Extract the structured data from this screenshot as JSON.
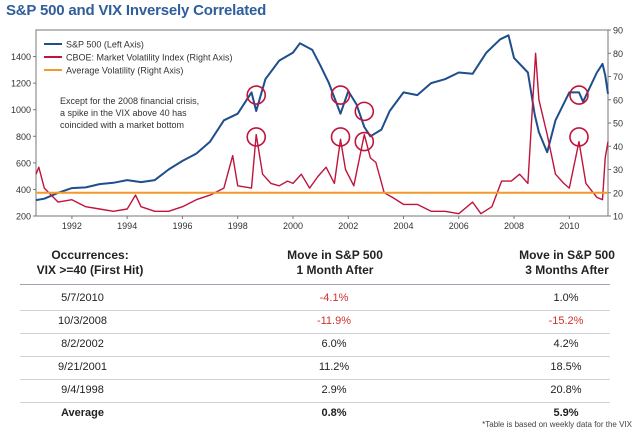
{
  "title": "S&P 500 and VIX Inversely Correlated",
  "chart_data": {
    "type": "line",
    "xlim": [
      1990.7,
      2011.4
    ],
    "x_ticks": [
      "1992",
      "1994",
      "1996",
      "1998",
      "2000",
      "2002",
      "2004",
      "2006",
      "2008",
      "2010"
    ],
    "left_axis": {
      "label": "S&P 500",
      "ylim": [
        200,
        1600
      ],
      "ticks": [
        "200",
        "400",
        "600",
        "800",
        "1000",
        "1200",
        "1400"
      ]
    },
    "right_axis": {
      "label": "VIX",
      "ylim": [
        10,
        90
      ],
      "ticks": [
        "10",
        "20",
        "30",
        "40",
        "50",
        "60",
        "70",
        "80",
        "90"
      ]
    },
    "series": [
      {
        "name": "S&P 500 (Left Axis)",
        "axis": "left",
        "color": "#1f4e8c",
        "points": [
          [
            1990.7,
            320
          ],
          [
            1991.0,
            330
          ],
          [
            1991.5,
            375
          ],
          [
            1992.0,
            410
          ],
          [
            1992.5,
            415
          ],
          [
            1993.0,
            440
          ],
          [
            1993.5,
            450
          ],
          [
            1994.0,
            470
          ],
          [
            1994.5,
            455
          ],
          [
            1995.0,
            470
          ],
          [
            1995.5,
            550
          ],
          [
            1996.0,
            615
          ],
          [
            1996.5,
            670
          ],
          [
            1997.0,
            760
          ],
          [
            1997.5,
            920
          ],
          [
            1998.0,
            970
          ],
          [
            1998.5,
            1130
          ],
          [
            1998.67,
            990
          ],
          [
            1999.0,
            1230
          ],
          [
            1999.5,
            1370
          ],
          [
            2000.0,
            1430
          ],
          [
            2000.25,
            1500
          ],
          [
            2000.7,
            1450
          ],
          [
            2001.0,
            1330
          ],
          [
            2001.3,
            1200
          ],
          [
            2001.72,
            970
          ],
          [
            2002.0,
            1140
          ],
          [
            2002.3,
            1040
          ],
          [
            2002.58,
            870
          ],
          [
            2002.8,
            800
          ],
          [
            2003.2,
            850
          ],
          [
            2003.5,
            990
          ],
          [
            2004.0,
            1130
          ],
          [
            2004.5,
            1110
          ],
          [
            2005.0,
            1200
          ],
          [
            2005.5,
            1230
          ],
          [
            2006.0,
            1280
          ],
          [
            2006.5,
            1270
          ],
          [
            2007.0,
            1430
          ],
          [
            2007.5,
            1530
          ],
          [
            2007.8,
            1560
          ],
          [
            2008.0,
            1390
          ],
          [
            2008.5,
            1280
          ],
          [
            2008.75,
            960
          ],
          [
            2008.9,
            830
          ],
          [
            2009.2,
            680
          ],
          [
            2009.5,
            920
          ],
          [
            2010.0,
            1130
          ],
          [
            2010.35,
            1130
          ],
          [
            2010.5,
            1060
          ],
          [
            2011.0,
            1280
          ],
          [
            2011.2,
            1345
          ],
          [
            2011.3,
            1260
          ],
          [
            2011.4,
            1120
          ]
        ]
      },
      {
        "name": "CBOE: Market Volatility Index (Right Axis)",
        "axis": "right",
        "color": "#c0143c",
        "points": [
          [
            1990.7,
            28
          ],
          [
            1990.8,
            31
          ],
          [
            1991.0,
            22
          ],
          [
            1991.5,
            16
          ],
          [
            1992.0,
            17
          ],
          [
            1992.5,
            14
          ],
          [
            1993.0,
            13
          ],
          [
            1993.5,
            12
          ],
          [
            1994.0,
            13
          ],
          [
            1994.3,
            19
          ],
          [
            1994.5,
            14
          ],
          [
            1995.0,
            12
          ],
          [
            1995.5,
            12
          ],
          [
            1996.0,
            14
          ],
          [
            1996.5,
            17
          ],
          [
            1997.0,
            19
          ],
          [
            1997.5,
            22
          ],
          [
            1997.82,
            36
          ],
          [
            1998.0,
            23
          ],
          [
            1998.5,
            22
          ],
          [
            1998.67,
            45
          ],
          [
            1998.9,
            28
          ],
          [
            1999.2,
            24
          ],
          [
            1999.5,
            23
          ],
          [
            1999.8,
            25
          ],
          [
            2000.0,
            24
          ],
          [
            2000.3,
            28
          ],
          [
            2000.6,
            22
          ],
          [
            2000.9,
            27
          ],
          [
            2001.2,
            31
          ],
          [
            2001.5,
            24
          ],
          [
            2001.72,
            43
          ],
          [
            2001.9,
            30
          ],
          [
            2002.2,
            23
          ],
          [
            2002.58,
            45
          ],
          [
            2002.8,
            35
          ],
          [
            2003.0,
            33
          ],
          [
            2003.3,
            20
          ],
          [
            2003.6,
            18
          ],
          [
            2004.0,
            15
          ],
          [
            2004.5,
            15
          ],
          [
            2005.0,
            12
          ],
          [
            2005.5,
            12
          ],
          [
            2006.0,
            11
          ],
          [
            2006.5,
            16
          ],
          [
            2006.8,
            11
          ],
          [
            2007.2,
            14
          ],
          [
            2007.55,
            25
          ],
          [
            2007.9,
            25
          ],
          [
            2008.2,
            28
          ],
          [
            2008.5,
            24
          ],
          [
            2008.78,
            80
          ],
          [
            2008.9,
            60
          ],
          [
            2009.2,
            45
          ],
          [
            2009.5,
            28
          ],
          [
            2009.8,
            24
          ],
          [
            2010.0,
            22
          ],
          [
            2010.35,
            42
          ],
          [
            2010.6,
            24
          ],
          [
            2011.0,
            18
          ],
          [
            2011.2,
            17
          ],
          [
            2011.3,
            35
          ],
          [
            2011.4,
            42
          ]
        ]
      },
      {
        "name": "Average Volatility (Right Axis)",
        "axis": "right",
        "color": "#f39a2a",
        "constant": 20
      }
    ],
    "circles": [
      [
        1998.67,
        62
      ],
      [
        1998.67,
        44
      ],
      [
        2001.72,
        62
      ],
      [
        2001.72,
        44
      ],
      [
        2002.58,
        55
      ],
      [
        2002.58,
        42
      ],
      [
        2010.35,
        62
      ],
      [
        2010.35,
        44
      ]
    ],
    "legend": [
      {
        "label": "S&P 500 (Left Axis)",
        "color": "#1f4e8c"
      },
      {
        "label": "CBOE: Market Volatility Index (Right Axis)",
        "color": "#c0143c"
      },
      {
        "label": "Average Volatility (Right Axis)",
        "color": "#f39a2a"
      }
    ],
    "annotation": [
      "Except for the 2008 financial crisis,",
      "a spike in the VIX above 40 has",
      "coincided with a market bottom"
    ]
  },
  "table": {
    "headers": {
      "col1": [
        "Occurrences:",
        "VIX >=40 (First Hit)"
      ],
      "col2": [
        "Move in S&P 500",
        "1 Month After"
      ],
      "col3": [
        "Move in S&P 500",
        "3 Months After"
      ]
    },
    "rows": [
      {
        "date": "5/7/2010",
        "one_month": "-4.1%",
        "three_month": "1.0%",
        "one_neg": true,
        "three_neg": false
      },
      {
        "date": "10/3/2008",
        "one_month": "-11.9%",
        "three_month": "-15.2%",
        "one_neg": true,
        "three_neg": true
      },
      {
        "date": "8/2/2002",
        "one_month": "6.0%",
        "three_month": "4.2%",
        "one_neg": false,
        "three_neg": false
      },
      {
        "date": "9/21/2001",
        "one_month": "11.2%",
        "three_month": "18.5%",
        "one_neg": false,
        "three_neg": false
      },
      {
        "date": "9/4/1998",
        "one_month": "2.9%",
        "three_month": "20.8%",
        "one_neg": false,
        "three_neg": false
      }
    ],
    "average": {
      "label": "Average",
      "one_month": "0.8%",
      "three_month": "5.9%"
    },
    "footnote": "*Table is based on weekly data for the VIX"
  }
}
